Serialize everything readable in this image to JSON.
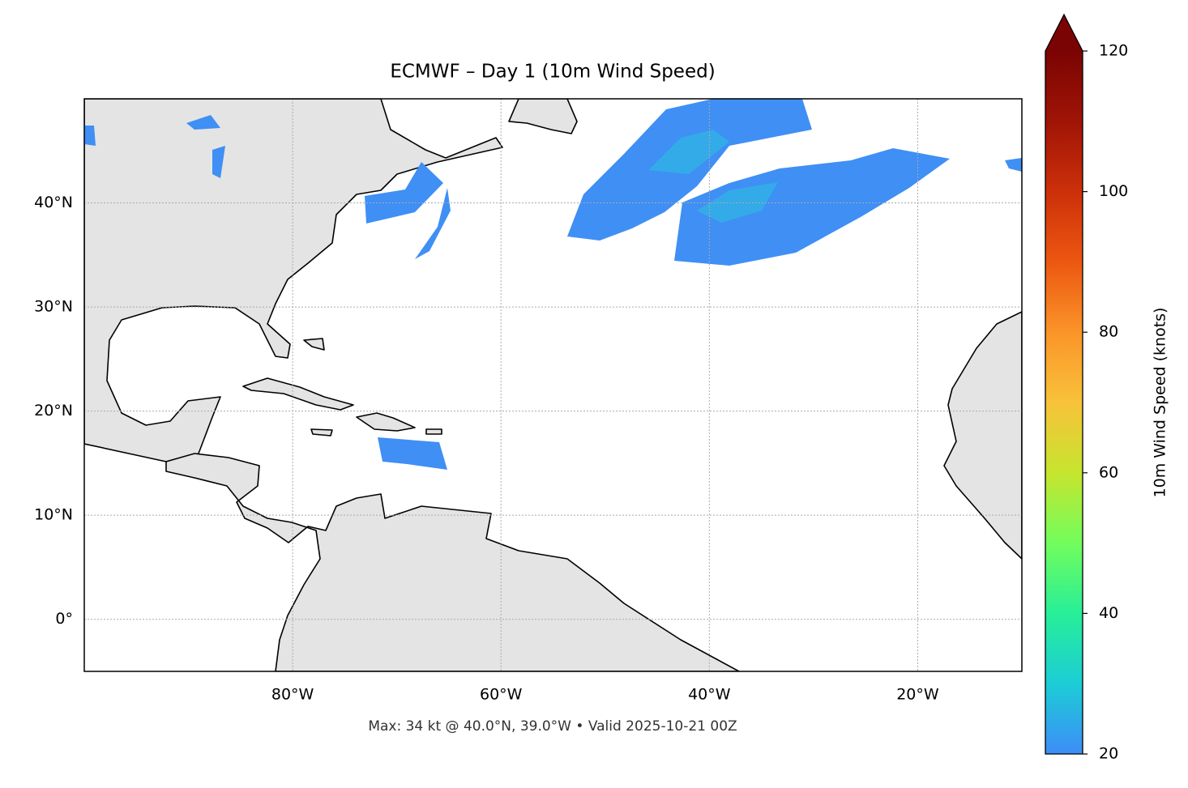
{
  "chart_data": {
    "type": "map",
    "title": "ECMWF – Day 1 (10m Wind Speed)",
    "subtitle": "Max: 34 kt @ 40.0°N, 39.0°W • Valid 2025-10-21 00Z",
    "xlim": [
      -100,
      -10
    ],
    "ylim": [
      -5,
      50
    ],
    "xticks": [
      {
        "value": -80,
        "label": "80°W"
      },
      {
        "value": -60,
        "label": "60°W"
      },
      {
        "value": -40,
        "label": "40°W"
      },
      {
        "value": -20,
        "label": "20°W"
      }
    ],
    "yticks": [
      {
        "value": 0,
        "label": "0°"
      },
      {
        "value": 10,
        "label": "10°N"
      },
      {
        "value": 20,
        "label": "20°N"
      },
      {
        "value": 30,
        "label": "30°N"
      },
      {
        "value": 40,
        "label": "40°N"
      }
    ],
    "grid": true,
    "colorbar": {
      "label": "10m Wind Speed (knots)",
      "lim": [
        20,
        120
      ],
      "ticks": [
        20,
        40,
        60,
        80,
        100,
        120
      ],
      "extend": "max",
      "colors": [
        "#3d8df7",
        "#1ccdd6",
        "#27ef98",
        "#72fd5c",
        "#c6e52e",
        "#f8c23a",
        "#fb9429",
        "#ec5711",
        "#cc300a",
        "#a01406",
        "#7a0403"
      ]
    }
  }
}
